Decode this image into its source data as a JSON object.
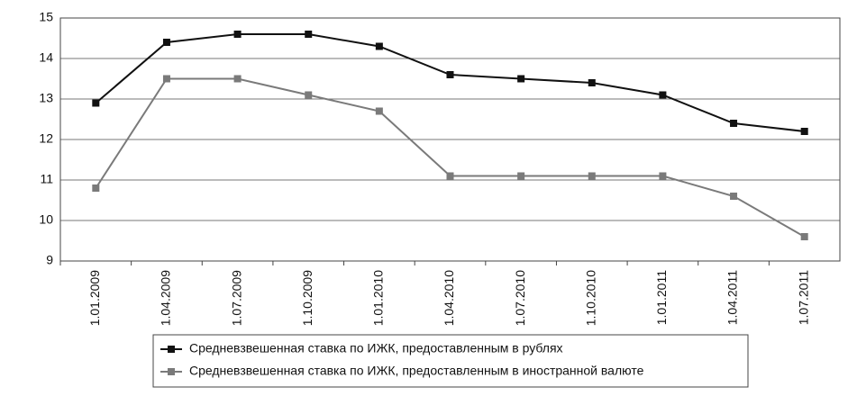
{
  "chart_data": {
    "type": "line",
    "categories": [
      "1.01.2009",
      "1.04.2009",
      "1.07.2009",
      "1.10.2009",
      "1.01.2010",
      "1.04.2010",
      "1.07.2010",
      "1.10.2010",
      "1.01.2011",
      "1.04.2011",
      "1.07.2011"
    ],
    "series": [
      {
        "name": "Средневзвешенная ставка по ИЖК, предоставленным в рублях",
        "color": "#111111",
        "values": [
          12.9,
          14.4,
          14.6,
          14.6,
          14.3,
          13.6,
          13.5,
          13.4,
          13.1,
          12.4,
          12.2
        ]
      },
      {
        "name": "Средневзвешенная ставка по ИЖК, предоставленным в иностранной валюте",
        "color": "#7a7a7a",
        "values": [
          10.8,
          13.5,
          13.5,
          13.1,
          12.7,
          11.1,
          11.1,
          11.1,
          11.1,
          10.6,
          9.6
        ]
      }
    ],
    "ylim": [
      9,
      15
    ],
    "yticks": [
      9,
      10,
      11,
      12,
      13,
      14,
      15
    ],
    "grid": true,
    "legend": "bottom"
  }
}
